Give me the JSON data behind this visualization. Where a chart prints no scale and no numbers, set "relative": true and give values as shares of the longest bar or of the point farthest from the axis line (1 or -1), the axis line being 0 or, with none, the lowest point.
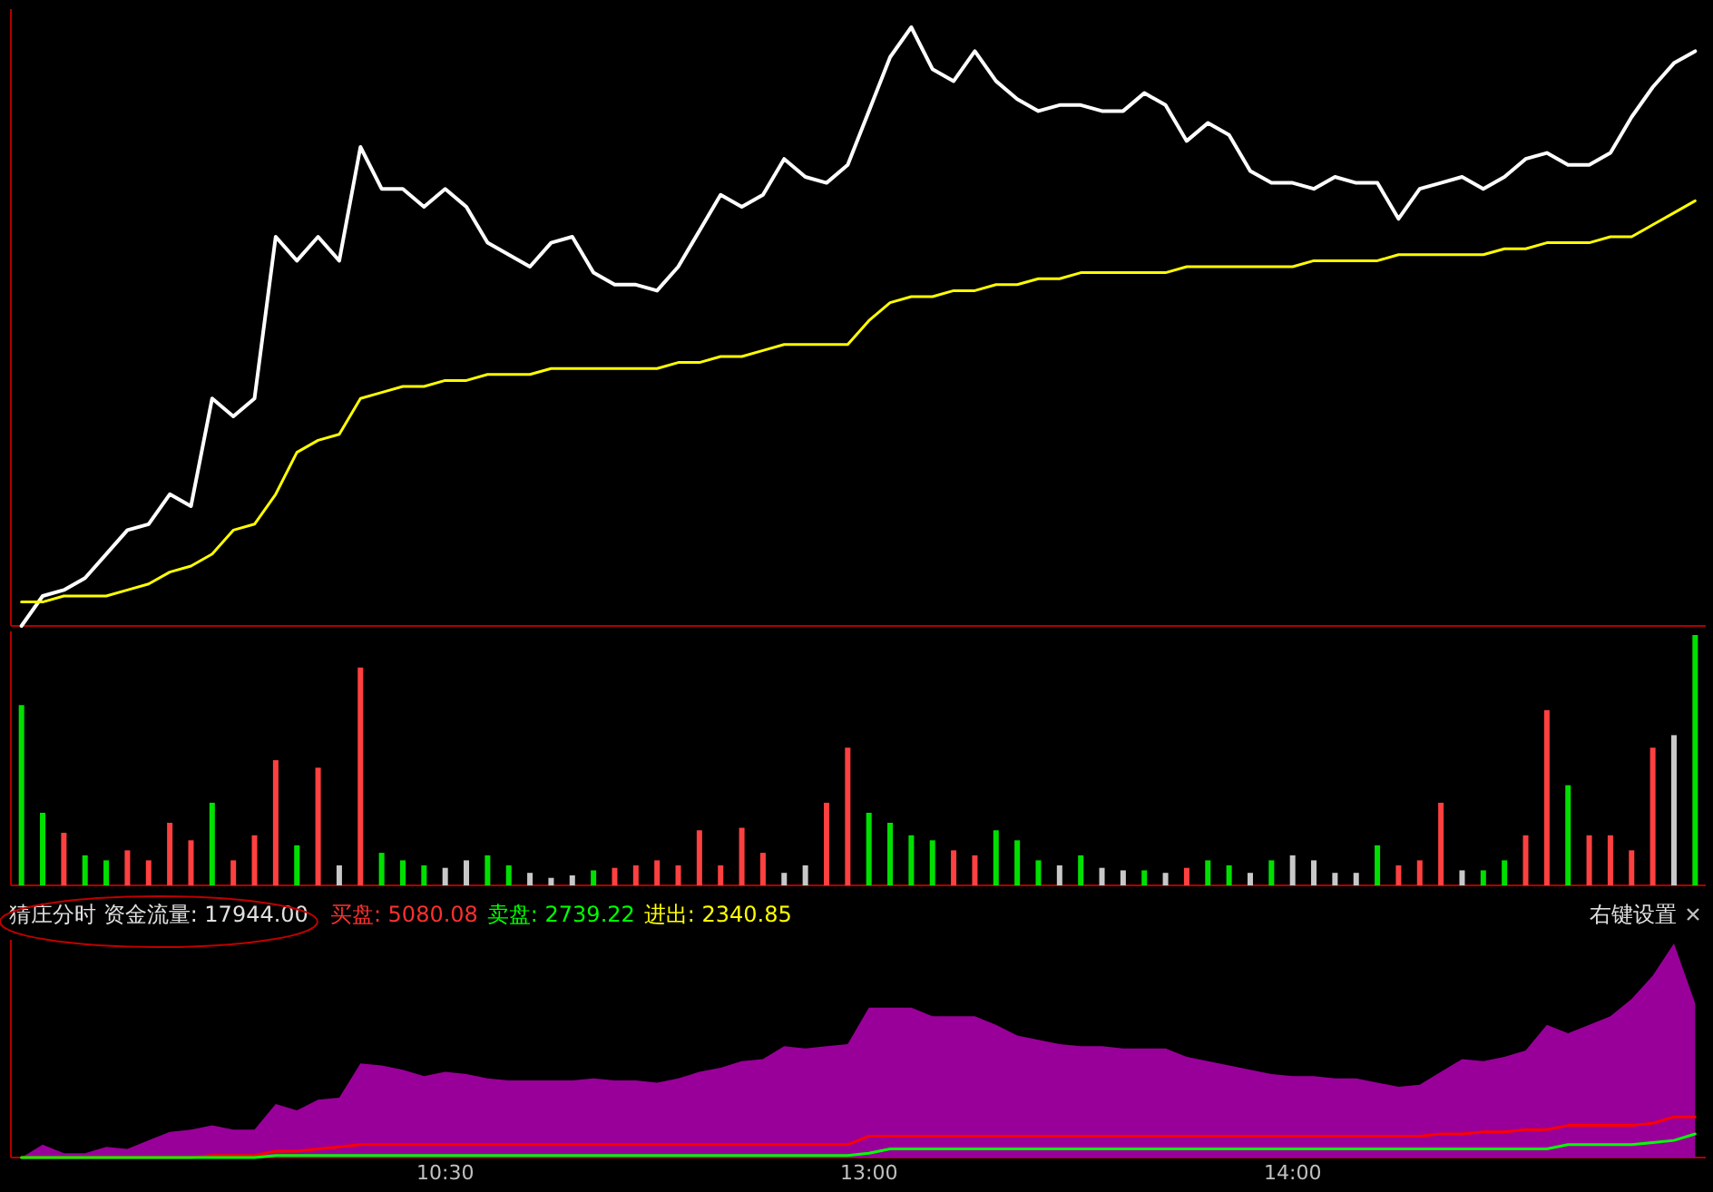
{
  "chart_data": [
    {
      "type": "line",
      "relative": true,
      "categories": [
        null,
        null,
        null,
        null,
        null,
        null,
        null,
        null,
        null,
        null,
        null,
        null,
        null,
        null,
        null,
        null,
        null,
        null,
        null,
        null,
        null,
        null,
        null,
        null,
        null,
        null,
        null,
        null,
        null,
        null,
        null,
        null,
        null,
        null,
        null,
        null,
        null,
        null,
        null,
        null,
        null,
        null,
        null,
        null,
        null,
        null,
        null,
        null,
        null,
        null,
        null,
        null,
        null,
        null,
        null,
        null,
        null,
        null,
        null,
        null,
        null,
        null,
        null,
        null,
        null,
        null,
        null,
        null,
        null,
        null,
        null,
        null,
        null,
        null,
        null,
        null,
        null,
        null,
        null,
        null
      ],
      "series": [
        {
          "color": "#ffffff",
          "values": [
            0,
            0.05,
            0.06,
            0.08,
            0.12,
            0.16,
            0.17,
            0.22,
            0.2,
            0.38,
            0.35,
            0.38,
            0.65,
            0.61,
            0.65,
            0.61,
            0.8,
            0.73,
            0.73,
            0.7,
            0.73,
            0.7,
            0.64,
            0.62,
            0.6,
            0.64,
            0.65,
            0.59,
            0.57,
            0.57,
            0.56,
            0.6,
            0.66,
            0.72,
            0.7,
            0.72,
            0.78,
            0.75,
            0.74,
            0.77,
            0.86,
            0.95,
            1.0,
            0.93,
            0.91,
            0.96,
            0.91,
            0.88,
            0.86,
            0.87,
            0.87,
            0.86,
            0.86,
            0.89,
            0.87,
            0.81,
            0.84,
            0.82,
            0.76,
            0.74,
            0.74,
            0.73,
            0.75,
            0.74,
            0.74,
            0.68,
            0.73,
            0.74,
            0.75,
            0.73,
            0.75,
            0.78,
            0.79,
            0.77,
            0.77,
            0.79,
            0.85,
            0.9,
            0.94,
            0.96
          ]
        },
        {
          "color": "#ffff00",
          "values": [
            0.04,
            0.04,
            0.05,
            0.05,
            0.05,
            0.06,
            0.07,
            0.09,
            0.1,
            0.12,
            0.16,
            0.17,
            0.22,
            0.29,
            0.31,
            0.32,
            0.38,
            0.39,
            0.4,
            0.4,
            0.41,
            0.41,
            0.42,
            0.42,
            0.42,
            0.43,
            0.43,
            0.43,
            0.43,
            0.43,
            0.43,
            0.44,
            0.44,
            0.45,
            0.45,
            0.46,
            0.47,
            0.47,
            0.47,
            0.47,
            0.51,
            0.54,
            0.55,
            0.55,
            0.56,
            0.56,
            0.57,
            0.57,
            0.58,
            0.58,
            0.59,
            0.59,
            0.59,
            0.59,
            0.59,
            0.6,
            0.6,
            0.6,
            0.6,
            0.6,
            0.6,
            0.61,
            0.61,
            0.61,
            0.61,
            0.62,
            0.62,
            0.62,
            0.62,
            0.62,
            0.63,
            0.63,
            0.64,
            0.64,
            0.64,
            0.65,
            0.65,
            0.67,
            0.69,
            0.71
          ]
        }
      ]
    },
    {
      "type": "bar",
      "relative": true,
      "categories": [
        null,
        null,
        null,
        null,
        null,
        null,
        null,
        null,
        null,
        null,
        null,
        null,
        null,
        null,
        null,
        null,
        null,
        null,
        null,
        null,
        null,
        null,
        null,
        null,
        null,
        null,
        null,
        null,
        null,
        null,
        null,
        null,
        null,
        null,
        null,
        null,
        null,
        null,
        null,
        null,
        null,
        null,
        null,
        null,
        null,
        null,
        null,
        null,
        null,
        null,
        null,
        null,
        null,
        null,
        null,
        null,
        null,
        null,
        null,
        null,
        null,
        null,
        null,
        null,
        null,
        null,
        null,
        null,
        null,
        null,
        null,
        null,
        null,
        null,
        null,
        null,
        null,
        null,
        null,
        null
      ],
      "values": [
        0.72,
        0.29,
        0.21,
        0.12,
        0.1,
        0.14,
        0.1,
        0.25,
        0.18,
        0.33,
        0.1,
        0.2,
        0.5,
        0.16,
        0.47,
        0.08,
        0.87,
        0.13,
        0.1,
        0.08,
        0.07,
        0.1,
        0.12,
        0.08,
        0.05,
        0.03,
        0.04,
        0.06,
        0.07,
        0.08,
        0.1,
        0.08,
        0.22,
        0.08,
        0.23,
        0.13,
        0.05,
        0.08,
        0.33,
        0.55,
        0.29,
        0.25,
        0.2,
        0.18,
        0.14,
        0.12,
        0.22,
        0.18,
        0.1,
        0.08,
        0.12,
        0.07,
        0.06,
        0.06,
        0.05,
        0.07,
        0.1,
        0.08,
        0.05,
        0.1,
        0.12,
        0.1,
        0.05,
        0.05,
        0.16,
        0.08,
        0.1,
        0.33,
        0.06,
        0.06,
        0.1,
        0.2,
        0.7,
        0.4,
        0.2,
        0.2,
        0.14,
        0.55,
        0.6,
        1.0
      ],
      "colors": [
        "#00e000",
        "#00e000",
        "#ff4040",
        "#00e000",
        "#00e000",
        "#ff4040",
        "#ff4040",
        "#ff4040",
        "#ff4040",
        "#00e000",
        "#ff4040",
        "#ff4040",
        "#ff4040",
        "#00e000",
        "#ff4040",
        "#c8c8c8",
        "#ff4040",
        "#00e000",
        "#00e000",
        "#00e000",
        "#c8c8c8",
        "#c8c8c8",
        "#00e000",
        "#00e000",
        "#c8c8c8",
        "#c8c8c8",
        "#c8c8c8",
        "#00e000",
        "#ff4040",
        "#ff4040",
        "#ff4040",
        "#ff4040",
        "#ff4040",
        "#ff4040",
        "#ff4040",
        "#ff4040",
        "#c8c8c8",
        "#c8c8c8",
        "#ff4040",
        "#ff4040",
        "#00e000",
        "#00e000",
        "#00e000",
        "#00e000",
        "#ff4040",
        "#ff4040",
        "#00e000",
        "#00e000",
        "#00e000",
        "#c8c8c8",
        "#00e000",
        "#c8c8c8",
        "#c8c8c8",
        "#00e000",
        "#c8c8c8",
        "#ff4040",
        "#00e000",
        "#00e000",
        "#c8c8c8",
        "#00e000",
        "#c8c8c8",
        "#c8c8c8",
        "#c8c8c8",
        "#c8c8c8",
        "#00e000",
        "#ff4040",
        "#ff4040",
        "#ff4040",
        "#c8c8c8",
        "#00e000",
        "#00e000",
        "#ff4040",
        "#ff4040",
        "#00e000",
        "#ff4040",
        "#ff4040",
        "#ff4040",
        "#ff4040",
        "#c8c8c8",
        "#00e000"
      ]
    },
    {
      "type": "area",
      "relative": true,
      "categories": [
        null,
        null,
        null,
        null,
        null,
        null,
        null,
        null,
        null,
        null,
        null,
        null,
        null,
        null,
        null,
        null,
        null,
        null,
        null,
        null,
        "10:30",
        null,
        null,
        null,
        null,
        null,
        null,
        null,
        null,
        null,
        null,
        null,
        null,
        null,
        null,
        null,
        null,
        null,
        null,
        null,
        "13:00",
        null,
        null,
        null,
        null,
        null,
        null,
        null,
        null,
        null,
        null,
        null,
        null,
        null,
        null,
        null,
        null,
        null,
        null,
        null,
        "14:00",
        null,
        null,
        null,
        null,
        null,
        null,
        null,
        null,
        null,
        null,
        null,
        null,
        null,
        null,
        null,
        null,
        null,
        null,
        null
      ],
      "annotations": [
        "猜庄分时 资金流量: 17944.00",
        "买盘: 5080.08",
        "卖盘: 2739.22",
        "进出: 2340.85",
        "右键设置"
      ],
      "series": [
        {
          "color": "#990099",
          "values": [
            0,
            0.06,
            0.02,
            0.02,
            0.05,
            0.04,
            0.08,
            0.12,
            0.13,
            0.15,
            0.13,
            0.13,
            0.25,
            0.22,
            0.27,
            0.28,
            0.44,
            0.43,
            0.41,
            0.38,
            0.4,
            0.39,
            0.37,
            0.36,
            0.36,
            0.36,
            0.36,
            0.37,
            0.36,
            0.36,
            0.35,
            0.37,
            0.4,
            0.42,
            0.45,
            0.46,
            0.52,
            0.51,
            0.52,
            0.53,
            0.7,
            0.7,
            0.7,
            0.66,
            0.66,
            0.66,
            0.62,
            0.57,
            0.55,
            0.53,
            0.52,
            0.52,
            0.51,
            0.51,
            0.51,
            0.47,
            0.45,
            0.43,
            0.41,
            0.39,
            0.38,
            0.38,
            0.37,
            0.37,
            0.35,
            0.33,
            0.34,
            0.4,
            0.46,
            0.45,
            0.47,
            0.5,
            0.62,
            0.58,
            0.62,
            0.66,
            0.74,
            0.85,
            1.0,
            0.72
          ]
        },
        {
          "type": "line",
          "color": "#ff0000",
          "values": [
            0,
            0,
            0,
            0,
            0,
            0,
            0,
            0,
            0,
            0.01,
            0.01,
            0.01,
            0.03,
            0.03,
            0.04,
            0.05,
            0.06,
            0.06,
            0.06,
            0.06,
            0.06,
            0.06,
            0.06,
            0.06,
            0.06,
            0.06,
            0.06,
            0.06,
            0.06,
            0.06,
            0.06,
            0.06,
            0.06,
            0.06,
            0.06,
            0.06,
            0.06,
            0.06,
            0.06,
            0.06,
            0.1,
            0.1,
            0.1,
            0.1,
            0.1,
            0.1,
            0.1,
            0.1,
            0.1,
            0.1,
            0.1,
            0.1,
            0.1,
            0.1,
            0.1,
            0.1,
            0.1,
            0.1,
            0.1,
            0.1,
            0.1,
            0.1,
            0.1,
            0.1,
            0.1,
            0.1,
            0.1,
            0.11,
            0.11,
            0.12,
            0.12,
            0.13,
            0.13,
            0.15,
            0.15,
            0.15,
            0.15,
            0.16,
            0.19,
            0.19
          ]
        },
        {
          "type": "line",
          "color": "#00ff00",
          "values": [
            0,
            0,
            0,
            0,
            0,
            0,
            0,
            0,
            0,
            0,
            0,
            0,
            0.01,
            0.01,
            0.01,
            0.01,
            0.01,
            0.01,
            0.01,
            0.01,
            0.01,
            0.01,
            0.01,
            0.01,
            0.01,
            0.01,
            0.01,
            0.01,
            0.01,
            0.01,
            0.01,
            0.01,
            0.01,
            0.01,
            0.01,
            0.01,
            0.01,
            0.01,
            0.01,
            0.01,
            0.02,
            0.04,
            0.04,
            0.04,
            0.04,
            0.04,
            0.04,
            0.04,
            0.04,
            0.04,
            0.04,
            0.04,
            0.04,
            0.04,
            0.04,
            0.04,
            0.04,
            0.04,
            0.04,
            0.04,
            0.04,
            0.04,
            0.04,
            0.04,
            0.04,
            0.04,
            0.04,
            0.04,
            0.04,
            0.04,
            0.04,
            0.04,
            0.04,
            0.06,
            0.06,
            0.06,
            0.06,
            0.07,
            0.08,
            0.11
          ]
        }
      ]
    }
  ]
}
